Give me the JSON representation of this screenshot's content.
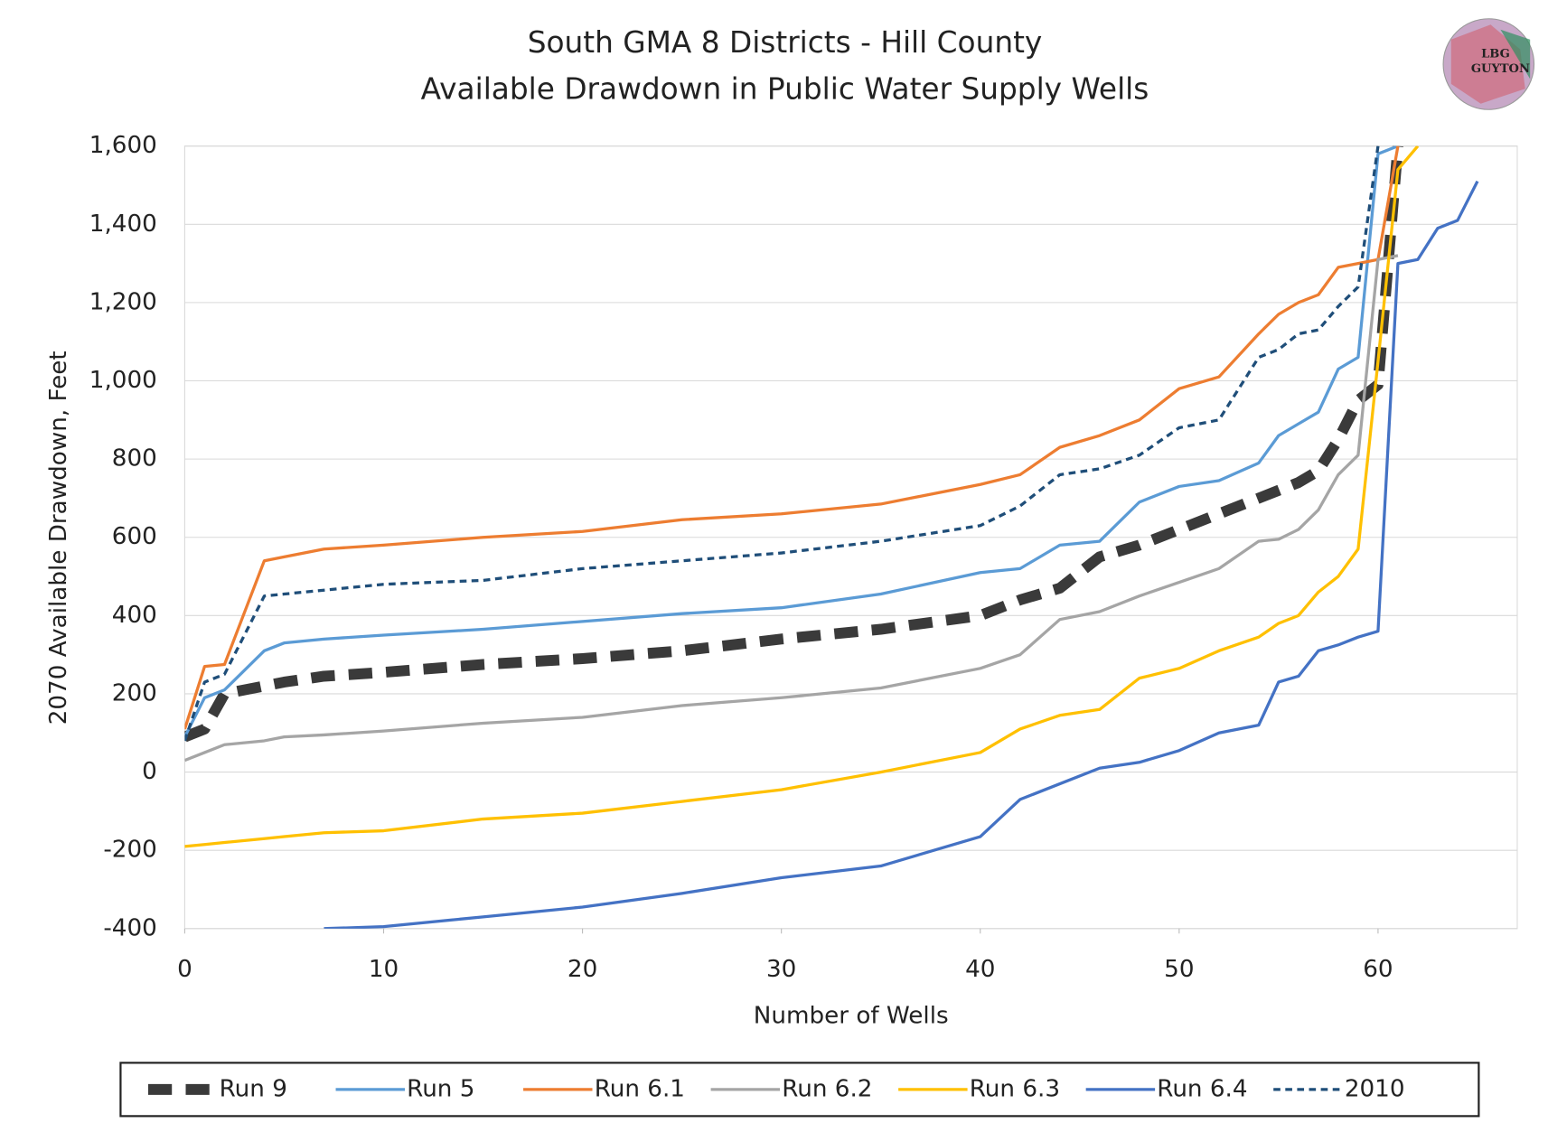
{
  "chart_data": {
    "type": "line",
    "title": [
      "South GMA 8 Districts - Hill County",
      "Available Drawdown in Public Water Supply Wells"
    ],
    "x_label": "Number of Wells",
    "y_label": "2070 Available Drawdown, Feet",
    "logo": [
      "LBG",
      "GUYTON"
    ],
    "xlim": [
      0,
      67
    ],
    "ylim": [
      -400,
      1600
    ],
    "xticks": [
      0,
      10,
      20,
      30,
      40,
      50,
      60
    ],
    "yticks": [
      -400,
      -200,
      0,
      200,
      400,
      600,
      800,
      {
        "value": 1000,
        "label": "1,000"
      },
      {
        "value": 1200,
        "label": "1,200"
      },
      {
        "value": 1400,
        "label": "1,400"
      },
      {
        "value": 1600,
        "label": "1,600"
      }
    ],
    "grid": true,
    "legend": "bottom",
    "x": [
      0,
      1,
      2,
      4,
      5,
      7,
      10,
      15,
      20,
      25,
      30,
      35,
      40,
      42,
      44,
      46,
      48,
      50,
      52,
      54,
      55,
      56,
      57,
      58,
      59,
      60,
      61,
      62,
      63,
      64,
      65
    ],
    "series": [
      {
        "name": "Run 9",
        "color": "#3a3a3a",
        "style": "thick-dash",
        "values": [
          90,
          110,
          200,
          220,
          230,
          245,
          255,
          275,
          290,
          310,
          340,
          365,
          400,
          440,
          470,
          550,
          580,
          620,
          660,
          700,
          720,
          740,
          770,
          850,
          950,
          990,
          1600,
          null,
          null,
          null,
          null
        ]
      },
      {
        "name": "Run 5",
        "color": "#5b9bd5",
        "style": "solid",
        "values": [
          90,
          190,
          210,
          310,
          330,
          340,
          350,
          365,
          385,
          405,
          420,
          455,
          510,
          520,
          580,
          590,
          690,
          730,
          745,
          790,
          860,
          890,
          920,
          1030,
          1060,
          1580,
          1600,
          null,
          null,
          null,
          null
        ]
      },
      {
        "name": "Run 6.1",
        "color": "#ed7d31",
        "style": "solid",
        "values": [
          110,
          270,
          275,
          540,
          550,
          570,
          580,
          600,
          615,
          645,
          660,
          685,
          735,
          760,
          830,
          860,
          900,
          980,
          1010,
          1120,
          1170,
          1200,
          1220,
          1290,
          1300,
          1310,
          1600,
          null,
          null,
          null,
          null
        ]
      },
      {
        "name": "Run 6.2",
        "color": "#a5a5a5",
        "style": "solid",
        "values": [
          30,
          50,
          70,
          80,
          90,
          95,
          105,
          125,
          140,
          170,
          190,
          215,
          265,
          300,
          390,
          410,
          450,
          485,
          520,
          590,
          595,
          620,
          670,
          760,
          810,
          1310,
          1320,
          null,
          null,
          null,
          null
        ]
      },
      {
        "name": "Run 6.3",
        "color": "#ffc000",
        "style": "solid",
        "values": [
          -190,
          -185,
          -180,
          -170,
          -165,
          -155,
          -150,
          -120,
          -105,
          -75,
          -45,
          0,
          50,
          110,
          145,
          160,
          240,
          265,
          310,
          345,
          380,
          400,
          460,
          500,
          570,
          1050,
          1540,
          1600,
          null,
          null,
          null
        ]
      },
      {
        "name": "Run 6.4",
        "color": "#4472c4",
        "style": "solid",
        "values": [
          null,
          null,
          null,
          null,
          null,
          -400,
          -395,
          -370,
          -345,
          -310,
          -270,
          -240,
          -165,
          -70,
          -30,
          10,
          25,
          55,
          100,
          120,
          230,
          245,
          310,
          325,
          345,
          360,
          1300,
          1310,
          1390,
          1410,
          1510
        ]
      },
      {
        "name": "2010",
        "color": "#1f4e79",
        "style": "dash",
        "values": [
          80,
          230,
          250,
          450,
          455,
          465,
          480,
          490,
          520,
          540,
          560,
          590,
          630,
          680,
          760,
          775,
          810,
          880,
          900,
          1060,
          1080,
          1120,
          1130,
          1190,
          1240,
          1600,
          null,
          null,
          null,
          null,
          null
        ]
      }
    ]
  }
}
